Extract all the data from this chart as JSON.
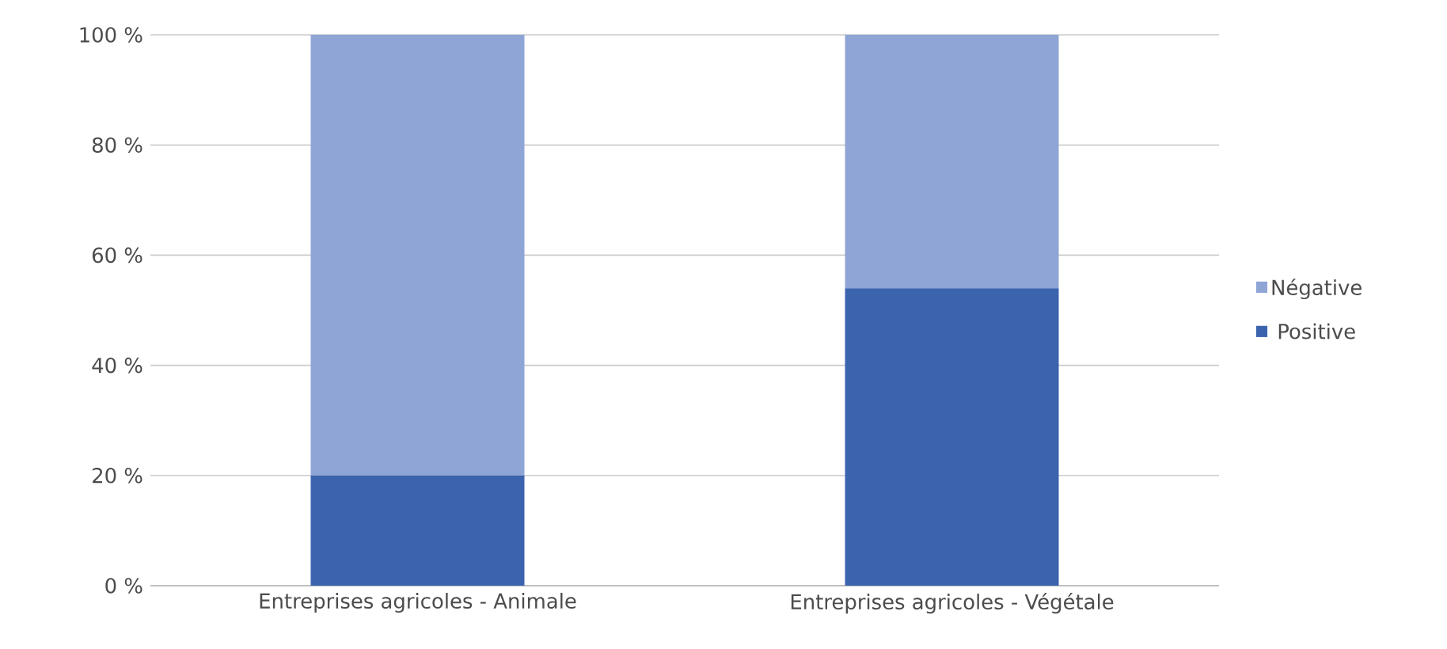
{
  "chart_data": {
    "type": "bar",
    "stacked": true,
    "categories": [
      "Entreprises agricoles - Animale",
      "Entreprises agricoles - Végétale"
    ],
    "series": [
      {
        "name": "Positive",
        "color": "#3c64ae",
        "values": [
          20,
          54
        ]
      },
      {
        "name": "Négative",
        "color": "#8fa5d6",
        "values": [
          80,
          46
        ]
      }
    ],
    "ylim": [
      0,
      100
    ],
    "yticks": [
      {
        "value": 0,
        "label": "0 %"
      },
      {
        "value": 20,
        "label": "20 %"
      },
      {
        "value": 40,
        "label": "40 %"
      },
      {
        "value": 60,
        "label": "60 %"
      },
      {
        "value": 80,
        "label": "80 %"
      },
      {
        "value": 100,
        "label": "100 %"
      }
    ],
    "grid": "y",
    "legend": "right"
  }
}
